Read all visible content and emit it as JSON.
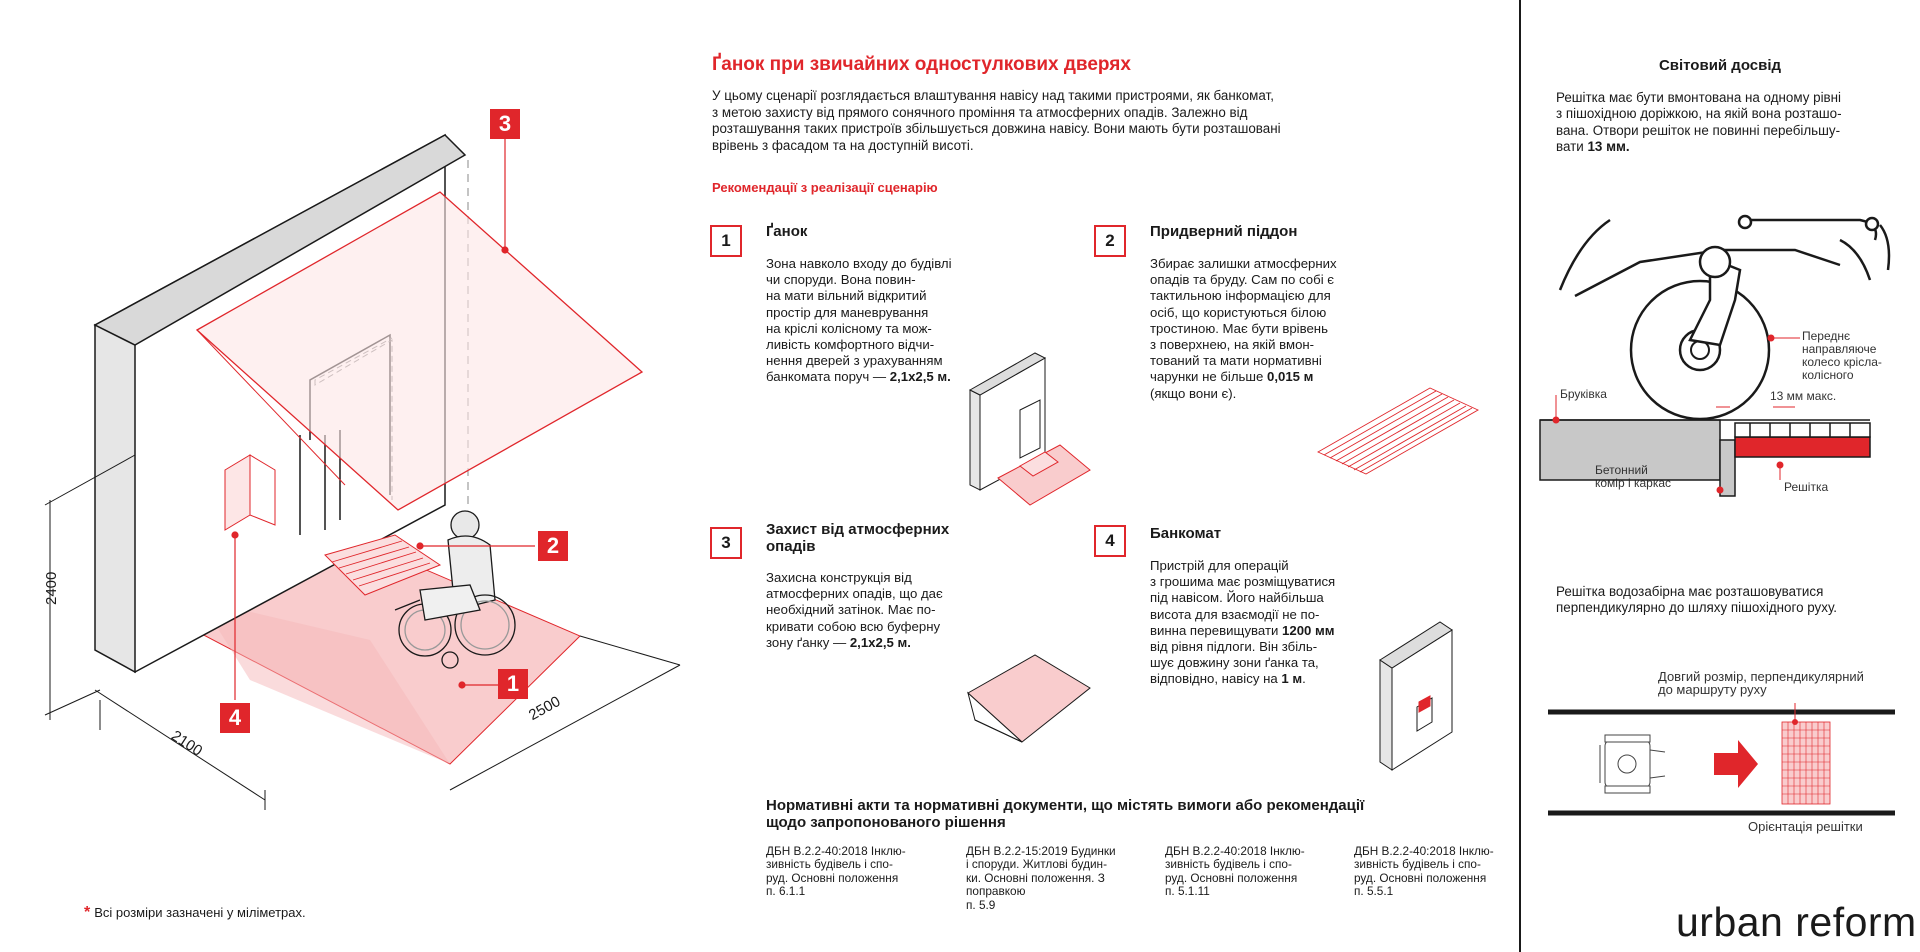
{
  "page": {
    "title": "Ґанок при звичайних одностулкових дверях",
    "intro": "У цьому сценарії розглядається влаштування навісу над такими пристроями, як банкомат,\nз метою захисту від прямого сонячного проміння та атмосферних опадів. Залежно від\nрозташування таких пристроїв збільшується довжина навісу. Вони мають бути розташовані\nврівень з фасадом та на доступній висоті.",
    "recommendations_heading": "Рекомендації з реалізації сценарію"
  },
  "recommendations": [
    {
      "number": "1",
      "title": "Ґанок",
      "text": "Зона навколо входу до будівлі\nчи споруди. Вона повин-\nна мати вільний відкритий\nпростір для маневрування\nна кріслі колісному та мож-\nливість комфортного відчи-\nнення дверей з урахуванням\nбанкомата поруч — ",
      "bold": "2,1x2,5 м."
    },
    {
      "number": "2",
      "title": "Придверний піддон",
      "text": "Збирає залишки атмосферних\nопадів та бруду. Сам по собі є\nтактильною інформацією для\nосіб, що користуються білою\nтростиною. Має бути врівень\nз поверхнею, на якій вмон-\nтований та мати нормативні\nчарунки не більше ",
      "bold": "0,015 м",
      "after": "\n(якщо вони є)."
    },
    {
      "number": "3",
      "title": "Захист від атмосферних\nопадів",
      "text": "Захисна конструкція від\nатмосферних опадів, що дає\nнеобхідний затінок. Має по-\nкривати собою всю буферну\nзону ґанку — ",
      "bold": "2,1x2,5 м."
    },
    {
      "number": "4",
      "title": "Банкомат",
      "text": "Пристрій для операцій\nз грошима має розміщуватися\nпід навісом. Його найбільша\nвисота для взаємодії не по-\nвинна перевищувати ",
      "bold": "1200 мм",
      "after": "\nвід рівня підлоги. Він збіль-\nшує довжину зони ґанка та,\nвідповідно, навісу на ",
      "bold2": "1 м",
      "after2": "."
    }
  ],
  "norms": {
    "title": "Нормативні акти та нормативні документи, що містять вимоги або рекомендації\nщодо запропонованого рішення",
    "docs": [
      "ДБН В.2.2-40:2018 Інклю-\nзивність будівель і спо-\nруд. Основні положення\nп. 6.1.1",
      "ДБН В.2.2-15:2019 Будинки\nі споруди. Житлові будин-\nки. Основні положення. З\nпоправкою\nп. 5.9",
      "ДБН В.2.2-40:2018 Інклю-\nзивність будівель і спо-\nруд. Основні положення\nп. 5.1.11",
      "ДБН В.2.2-40:2018 Інклю-\nзивність будівель і спо-\nруд. Основні положення\nп. 5.5.1"
    ]
  },
  "footnote": {
    "star": "*",
    "text": "Всі розміри зазначені у міліметрах."
  },
  "dimensions": {
    "height": "2400",
    "width": "2100",
    "depth": "2500"
  },
  "badges": [
    "1",
    "2",
    "3",
    "4"
  ],
  "world": {
    "title": "Світовий досвід",
    "text1_a": "Решітка має бути вмонтована на одному рівні\nз пішохідною доріжкою, на якій вона розташо-\nвана. Отвори решіток не повинні перебільшу-\nвати ",
    "text1_b": "13 мм.",
    "label_wheel": "Переднє\nнаправляюче\nколесо крісла-\nколісного",
    "label_paving": "Бруківка",
    "label_13mm": "13 мм макс.",
    "label_concrete": "Бетонний\nкомір і каркас",
    "label_grate": "Решітка",
    "text2": "Решітка водозабірна має розташовуватися\nперпендикулярно до шляху пішохідного руху.",
    "label_long": "Довгий розмір, перпендикулярний\nдо маршруту руху",
    "label_orient": "Орієнтація решітки"
  },
  "logo": "urban reform",
  "colors": {
    "accent": "#e0262b",
    "accent_light": "#f9cccd",
    "text": "#1a1a1a"
  }
}
